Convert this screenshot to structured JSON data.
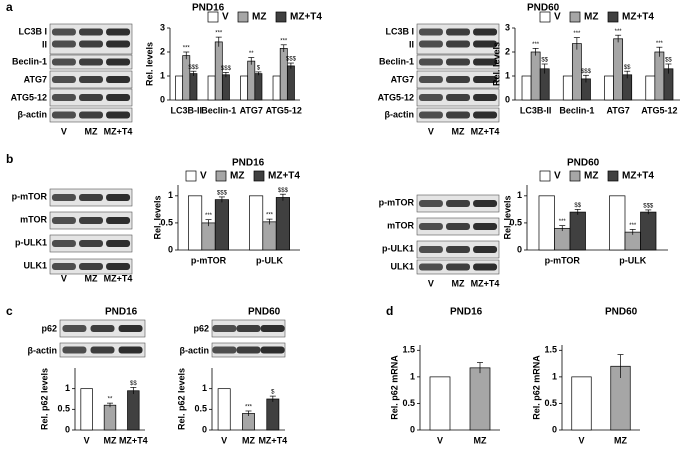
{
  "panels": [
    "a",
    "b",
    "c",
    "d"
  ],
  "blots": [
    {
      "rows": [
        "LC3B I",
        "II",
        "Beclin-1",
        "ATG7",
        "ATG5-12",
        "β-actin"
      ],
      "lanes": [
        "V",
        "MZ",
        "MZ+T4"
      ]
    },
    {
      "rows": [
        "LC3B I",
        "II",
        "Beclin-1",
        "ATG7",
        "ATG5-12",
        "β-actin"
      ],
      "lanes": [
        "V",
        "MZ",
        "MZ+T4"
      ]
    },
    {
      "rows": [
        "p-mTOR",
        "mTOR",
        "p-ULK1",
        "ULK1"
      ],
      "lanes": [
        "V",
        "MZ",
        "MZ+T4"
      ]
    },
    {
      "rows": [
        "p-mTOR",
        "mTOR",
        "p-ULK1",
        "ULK1"
      ],
      "lanes": [
        "V",
        "MZ",
        "MZ+T4"
      ]
    },
    {
      "rows": [
        "p62",
        "β-actin"
      ]
    },
    {
      "rows": [
        "p62",
        "β-actin"
      ]
    }
  ],
  "chart_data": [
    {
      "type": "bar",
      "title": "PND16",
      "ylabel": "Rel. levels",
      "categories": [
        "LC3B-II",
        "Beclin-1",
        "ATG7",
        "ATG5-12"
      ],
      "series": [
        {
          "name": "V",
          "color": "#ffffff",
          "values": [
            1,
            1,
            1,
            1
          ]
        },
        {
          "name": "MZ",
          "color": "#a6a6a6",
          "values": [
            1.85,
            2.42,
            1.62,
            2.15
          ],
          "errors": [
            0.15,
            0.2,
            0.15,
            0.15
          ],
          "annotations": [
            "***",
            "***",
            "**",
            "***"
          ]
        },
        {
          "name": "MZ+T4",
          "color": "#404040",
          "values": [
            1.1,
            1.05,
            1.1,
            1.42
          ],
          "errors": [
            0.1,
            0.1,
            0.07,
            0.12
          ],
          "annotations": [
            "$$$",
            "$$$",
            "$",
            "$$$"
          ]
        }
      ],
      "ylim": [
        0,
        3
      ],
      "yticks": [
        0,
        1,
        2,
        3
      ],
      "legend": true
    },
    {
      "type": "bar",
      "title": "PND60",
      "ylabel": "Rel. levels",
      "categories": [
        "LC3B-II",
        "Beclin-1",
        "ATG7",
        "ATG5-12"
      ],
      "series": [
        {
          "name": "V",
          "color": "#ffffff",
          "values": [
            1,
            1,
            1,
            1
          ]
        },
        {
          "name": "MZ",
          "color": "#a6a6a6",
          "values": [
            2.0,
            2.35,
            2.55,
            2.0
          ],
          "errors": [
            0.15,
            0.25,
            0.15,
            0.2
          ],
          "annotations": [
            "***",
            "***",
            "***",
            "***"
          ]
        },
        {
          "name": "MZ+T4",
          "color": "#404040",
          "values": [
            1.3,
            0.88,
            1.05,
            1.3
          ],
          "errors": [
            0.2,
            0.15,
            0.15,
            0.2
          ],
          "annotations": [
            "$$",
            "$$$",
            "$$",
            "$$"
          ]
        }
      ],
      "ylim": [
        0,
        3
      ],
      "yticks": [
        0,
        1,
        2,
        3
      ],
      "legend": true
    },
    {
      "type": "bar",
      "title": "PND16",
      "ylabel": "Rel. levels",
      "categories": [
        "p-mTOR",
        "p-ULK"
      ],
      "series": [
        {
          "name": "V",
          "color": "#ffffff",
          "values": [
            1,
            1
          ]
        },
        {
          "name": "MZ",
          "color": "#a6a6a6",
          "values": [
            0.5,
            0.52
          ],
          "errors": [
            0.06,
            0.05
          ],
          "annotations": [
            "***",
            "***"
          ]
        },
        {
          "name": "MZ+T4",
          "color": "#404040",
          "values": [
            0.93,
            0.97
          ],
          "errors": [
            0.05,
            0.06
          ],
          "annotations": [
            "$$$",
            "$$$"
          ]
        }
      ],
      "ylim": [
        0,
        1.2
      ],
      "yticks": [
        0,
        0.5,
        1
      ],
      "legend": true
    },
    {
      "type": "bar",
      "title": "PND60",
      "ylabel": "Rel. levels",
      "categories": [
        "p-mTOR",
        "p-ULK"
      ],
      "series": [
        {
          "name": "V",
          "color": "#ffffff",
          "values": [
            1,
            1
          ]
        },
        {
          "name": "MZ",
          "color": "#a6a6a6",
          "values": [
            0.4,
            0.33
          ],
          "errors": [
            0.05,
            0.05
          ],
          "annotations": [
            "***",
            "***"
          ]
        },
        {
          "name": "MZ+T4",
          "color": "#404040",
          "values": [
            0.7,
            0.7
          ],
          "errors": [
            0.05,
            0.04
          ],
          "annotations": [
            "$$",
            "$$$"
          ]
        }
      ],
      "ylim": [
        0,
        1.2
      ],
      "yticks": [
        0,
        0.5,
        1
      ],
      "legend": true
    },
    {
      "type": "bar",
      "title": "PND16",
      "ylabel": "Rel. p62 levels",
      "categories": [
        "V",
        "MZ",
        "MZ+T4"
      ],
      "values": [
        1,
        0.6,
        0.95
      ],
      "errors": [
        null,
        0.05,
        0.08
      ],
      "annotations": [
        null,
        "**",
        "$$"
      ],
      "colors": [
        "#ffffff",
        "#a6a6a6",
        "#404040"
      ],
      "ylim": [
        0,
        1.5
      ],
      "yticks": [
        0,
        0.5,
        1
      ],
      "legend": false
    },
    {
      "type": "bar",
      "title": "PND60",
      "ylabel": "Rel. p62 levels",
      "categories": [
        "V",
        "MZ",
        "MZ+T4"
      ],
      "values": [
        1,
        0.4,
        0.75
      ],
      "errors": [
        null,
        0.06,
        0.07
      ],
      "annotations": [
        null,
        "***",
        "$"
      ],
      "colors": [
        "#ffffff",
        "#a6a6a6",
        "#404040"
      ],
      "ylim": [
        0,
        1.5
      ],
      "yticks": [
        0,
        0.5,
        1
      ],
      "legend": false
    },
    {
      "type": "bar",
      "title": "PND16",
      "ylabel": "Rel. p62 mRNA",
      "categories": [
        "V",
        "MZ"
      ],
      "values": [
        1,
        1.17
      ],
      "errors": [
        null,
        0.1
      ],
      "colors": [
        "#ffffff",
        "#a6a6a6"
      ],
      "ylim": [
        0,
        1.6
      ],
      "yticks": [
        0,
        0.5,
        1,
        1.5
      ],
      "legend": false
    },
    {
      "type": "bar",
      "title": "PND60",
      "ylabel": "Rel. p62 mRNA",
      "categories": [
        "V",
        "MZ"
      ],
      "values": [
        1,
        1.2
      ],
      "errors": [
        null,
        0.22
      ],
      "colors": [
        "#ffffff",
        "#a6a6a6"
      ],
      "ylim": [
        0,
        1.6
      ],
      "yticks": [
        0,
        0.5,
        1,
        1.5
      ],
      "legend": false
    }
  ]
}
